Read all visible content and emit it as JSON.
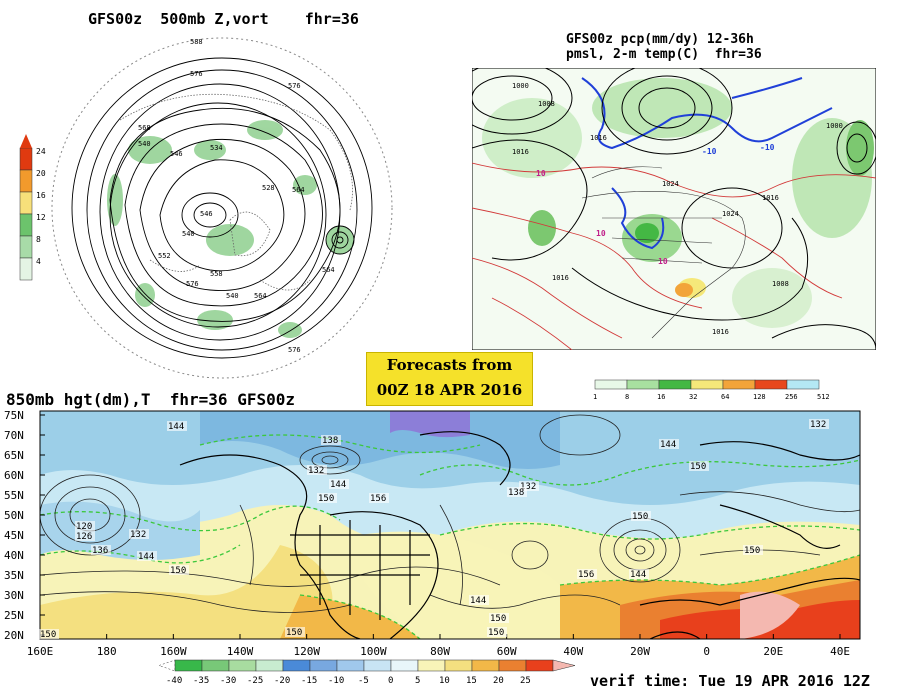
{
  "panel_polar": {
    "title": "GFS00z  500mb Z,vort    fhr=36",
    "colorbar_ticks": [
      "24",
      "20",
      "16",
      "12",
      "8",
      "4"
    ],
    "colorbar_colors": [
      "#e03a10",
      "#f29a2c",
      "#f7e07a",
      "#6cc36c",
      "#a8dba8",
      "#e4f4e4"
    ],
    "contour_labels": [
      "588",
      "576",
      "576",
      "568",
      "540",
      "546",
      "534",
      "528",
      "540",
      "546",
      "552",
      "564",
      "564",
      "576",
      "558",
      "540",
      "564",
      "576"
    ]
  },
  "panel_na": {
    "title_line1": "GFS00z pcp(mm/dy) 12-36h",
    "title_line2": "pmsl, 2-m temp(C)  fhr=36",
    "isobar_labels": [
      "1000",
      "1008",
      "1016",
      "1016",
      "1024",
      "1024",
      "1016",
      "1008",
      "1016",
      "1016",
      "1000"
    ],
    "temp_labels": [
      "10",
      "10",
      "10",
      "-10",
      "-10"
    ],
    "colorbar_ticks": [
      "1",
      "8",
      "16",
      "32",
      "64",
      "128",
      "256",
      "512"
    ],
    "colorbar_colors": [
      "#e8f8e8",
      "#a8e0a0",
      "#44b844",
      "#f5e87a",
      "#f2a43a",
      "#e8471c",
      "#b4e8f4"
    ]
  },
  "badge": {
    "line1": "Forecasts from",
    "line2": "00Z 18 APR 2016"
  },
  "panel_hemi": {
    "title": "850mb hgt(dm),T  fhr=36 GFS00z",
    "lat_labels": [
      "75N",
      "70N",
      "65N",
      "60N",
      "55N",
      "50N",
      "45N",
      "40N",
      "35N",
      "30N",
      "25N",
      "20N"
    ],
    "lon_labels": [
      "160E",
      "180",
      "160W",
      "140W",
      "120W",
      "100W",
      "80W",
      "60W",
      "40W",
      "20W",
      "0",
      "20E",
      "40E"
    ],
    "height_labels": [
      "144",
      "138",
      "132",
      "132",
      "144",
      "150",
      "156",
      "120",
      "126",
      "132",
      "136",
      "144",
      "150",
      "144",
      "150",
      "150",
      "132",
      "138",
      "150",
      "144",
      "150",
      "144",
      "150",
      "156",
      "150",
      "150"
    ],
    "colorbar_ticks": [
      "-40",
      "-35",
      "-30",
      "-25",
      "-20",
      "-15",
      "-10",
      "-5",
      "0",
      "5",
      "10",
      "15",
      "20",
      "25"
    ],
    "colorbar_colors": [
      "#38b84a",
      "#78c878",
      "#a8dca0",
      "#c8ecd0",
      "#4a8ad8",
      "#78a8e0",
      "#a0c8ec",
      "#c8e4f4",
      "#e8f6fa",
      "#f8f4b8",
      "#f4e080",
      "#f2b848",
      "#ea8030",
      "#e8401c"
    ],
    "verif_time": "verif time: Tue 19 APR 2016 12Z"
  }
}
